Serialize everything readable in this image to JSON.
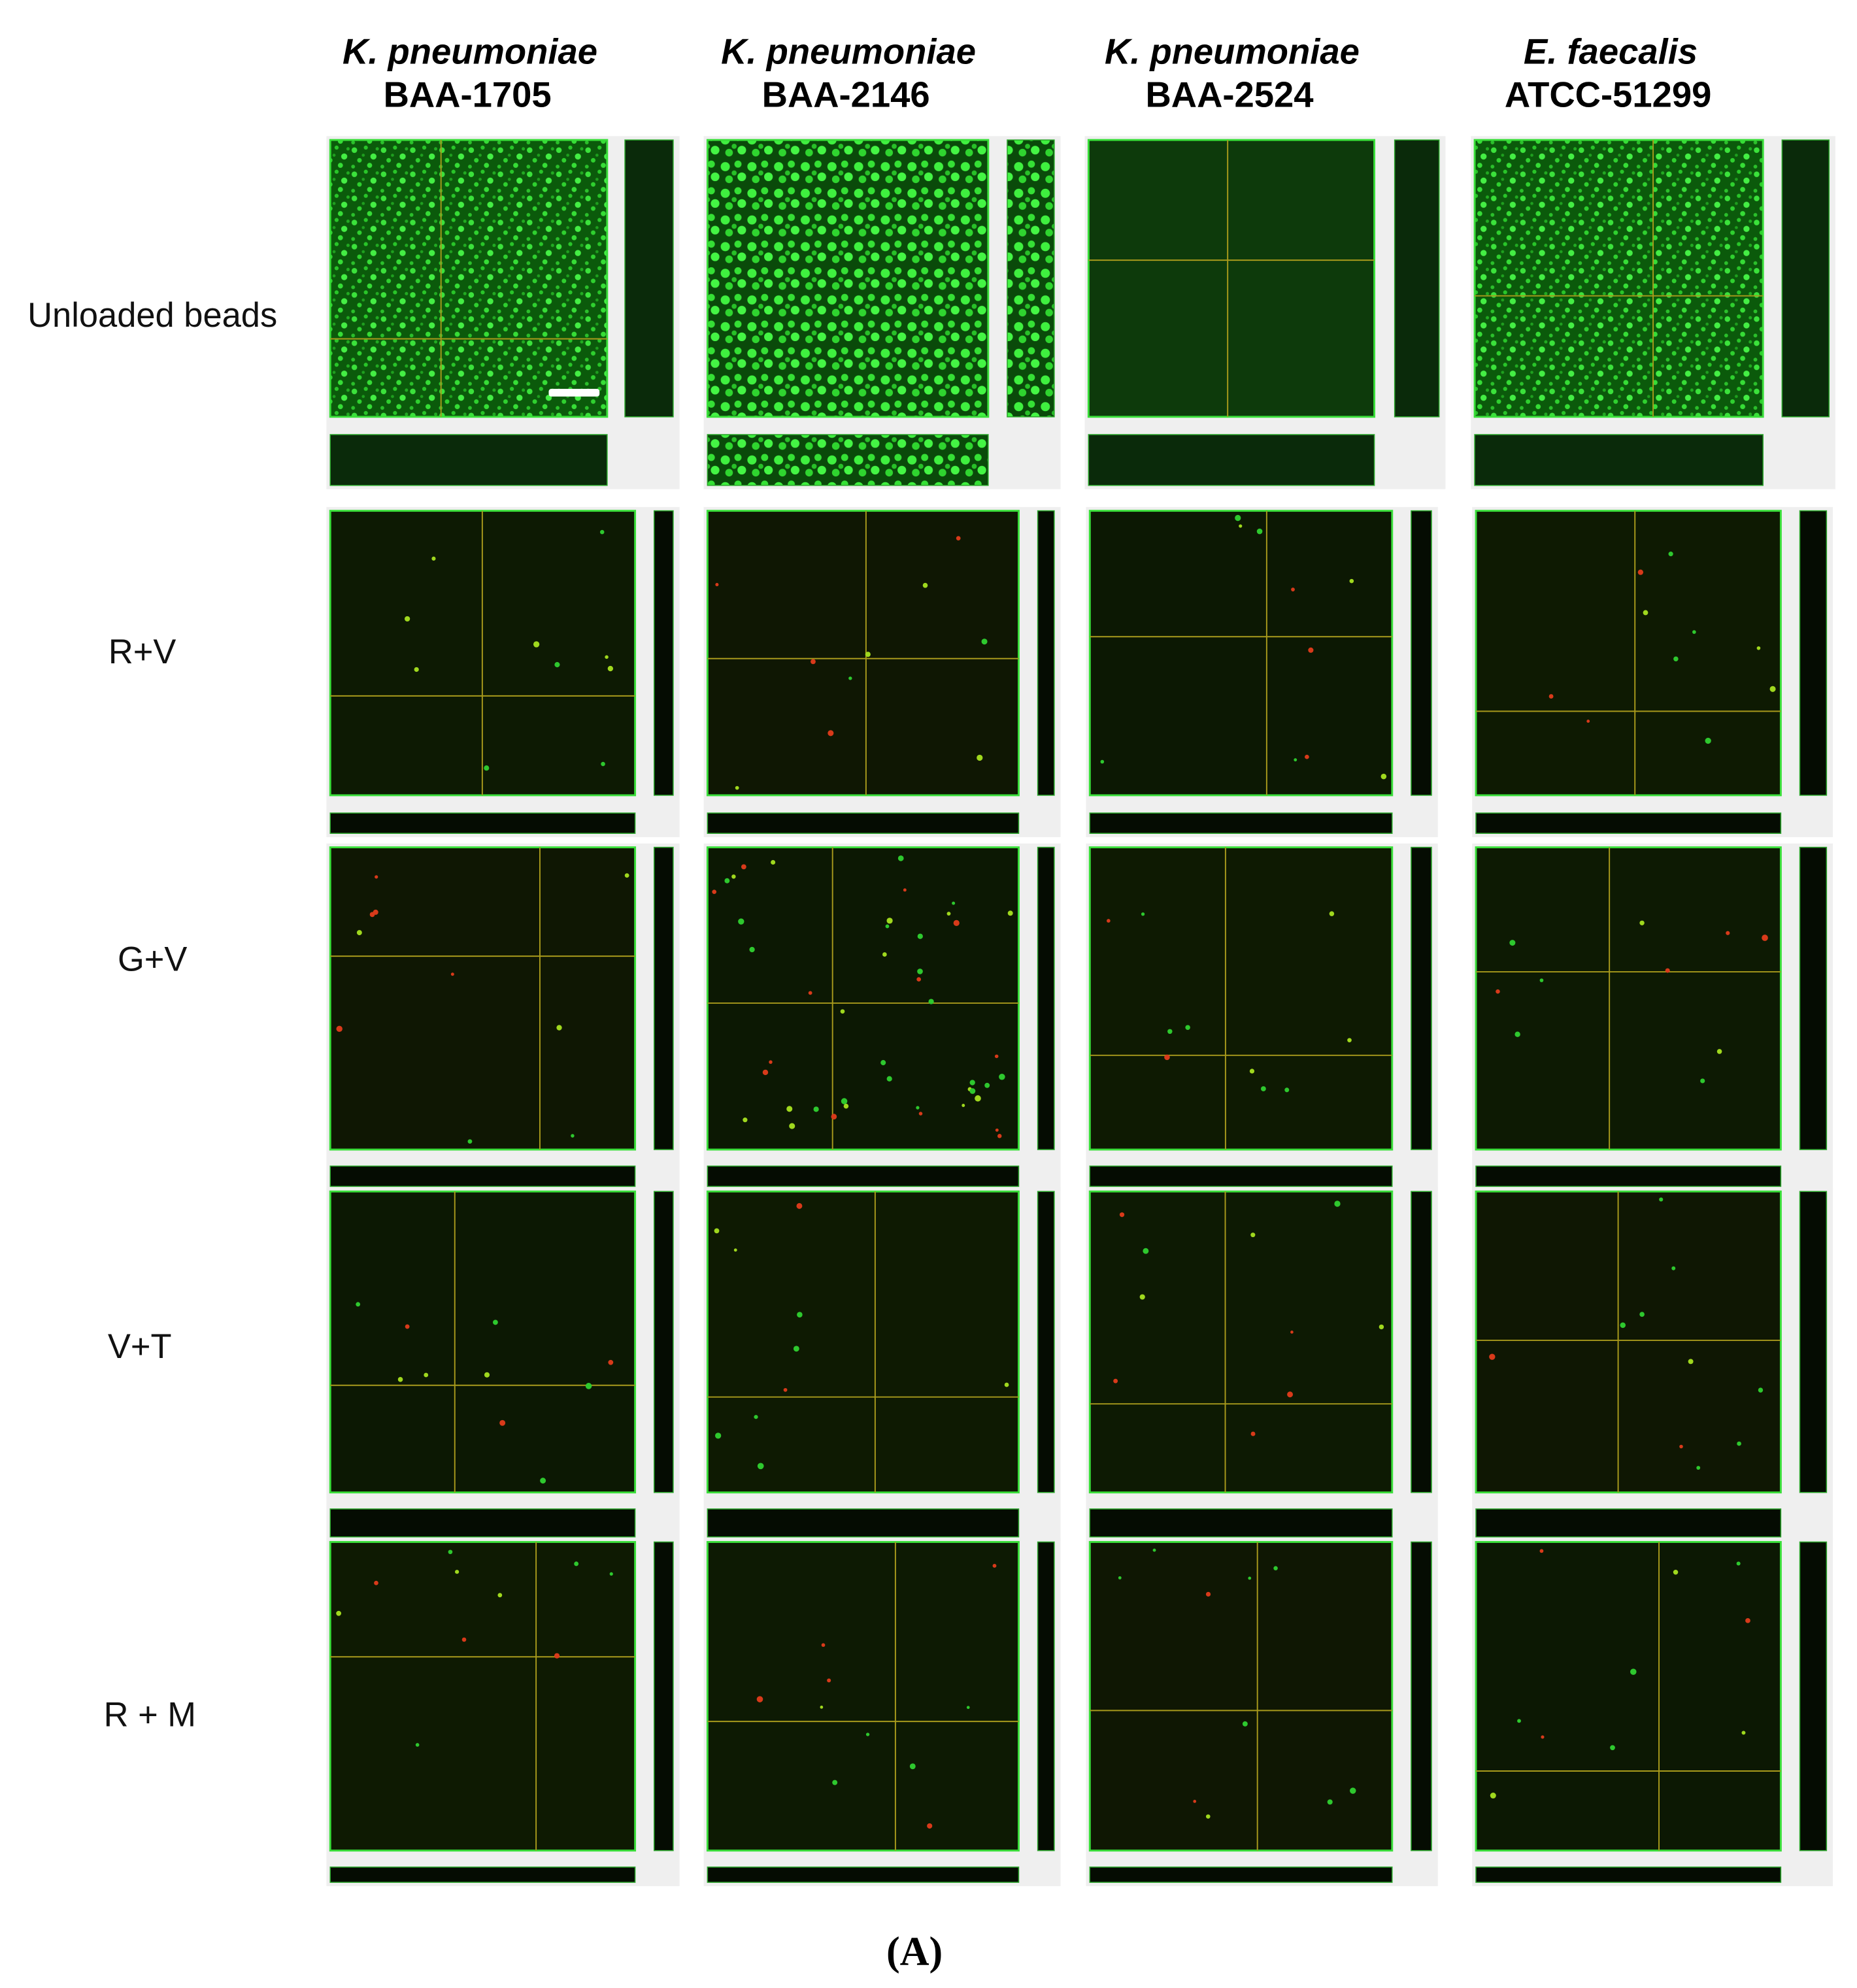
{
  "columns": [
    {
      "species": "K. pneumoniae",
      "strain": "BAA-1705"
    },
    {
      "species": "K. pneumoniae",
      "strain": "BAA-2146"
    },
    {
      "species": "K. pneumoniae",
      "strain": "BAA-2524"
    },
    {
      "species": "E. faecalis",
      "strain": "ATCC-51299"
    }
  ],
  "rows": [
    "Unloaded beads",
    "R+V",
    "G+V",
    "V+T",
    "R + M"
  ],
  "caption": "(A)"
}
